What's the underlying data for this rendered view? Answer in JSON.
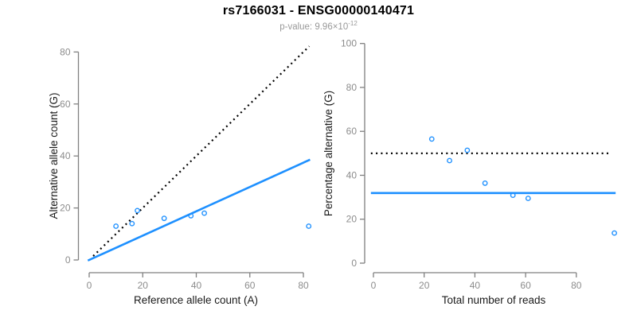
{
  "header": {
    "title": "rs7166031 - ENSG00000140471",
    "p_value_prefix": "p-value: 9.96×10",
    "p_value_exponent": "-12"
  },
  "colors": {
    "accent_blue": "#1E90FF",
    "identity_line": "#000000",
    "axis_line": "#808080",
    "tick_label": "#8C8C8C",
    "axis_title": "#1A1A1A",
    "subtitle_gray": "#999999"
  },
  "chart_data": [
    {
      "type": "scatter",
      "name": "allele-counts",
      "xlabel": "Reference allele count (A)",
      "ylabel": "Alternative allele count (G)",
      "xlim": [
        0,
        82
      ],
      "ylim": [
        0,
        82
      ],
      "xticks": [
        0,
        20,
        40,
        60,
        80
      ],
      "yticks": [
        0,
        20,
        40,
        60,
        80
      ],
      "grid": false,
      "legend": false,
      "points": [
        [
          10,
          13
        ],
        [
          16,
          14
        ],
        [
          18,
          19
        ],
        [
          28,
          16
        ],
        [
          38,
          17
        ],
        [
          43,
          18
        ],
        [
          82,
          13
        ]
      ],
      "lines": [
        {
          "name": "identity-line",
          "style": "dotted",
          "color": "#000000",
          "x1": 1.5,
          "y1": 1.5,
          "x2": 82.2,
          "y2": 82.2
        },
        {
          "name": "fit-line",
          "style": "solid",
          "color": "#1E90FF",
          "x1": -0.5,
          "y1": -0.23,
          "x2": 82.5,
          "y2": 38.6
        }
      ]
    },
    {
      "type": "scatter",
      "name": "percentage-vs-reads",
      "xlabel": "Total number of reads",
      "ylabel": "Percentage alternative (G)",
      "xlim": [
        0,
        95
      ],
      "ylim": [
        0,
        100
      ],
      "xticks": [
        0,
        20,
        40,
        60,
        80
      ],
      "yticks": [
        0,
        20,
        40,
        60,
        80,
        100
      ],
      "grid": false,
      "legend": false,
      "points": [
        [
          23,
          56.5
        ],
        [
          30,
          46.7
        ],
        [
          37,
          51.4
        ],
        [
          44,
          36.4
        ],
        [
          55,
          30.9
        ],
        [
          61,
          29.5
        ],
        [
          95,
          13.7
        ]
      ],
      "lines": [
        {
          "name": "expected-50-percent-line",
          "style": "dotted",
          "color": "#000000",
          "x1": -1,
          "y1": 50,
          "x2": 93.5,
          "y2": 50
        },
        {
          "name": "mean-percentage-line",
          "style": "solid",
          "color": "#1E90FF",
          "x1": -1,
          "y1": 31.9,
          "x2": 95.5,
          "y2": 31.9
        }
      ]
    }
  ]
}
